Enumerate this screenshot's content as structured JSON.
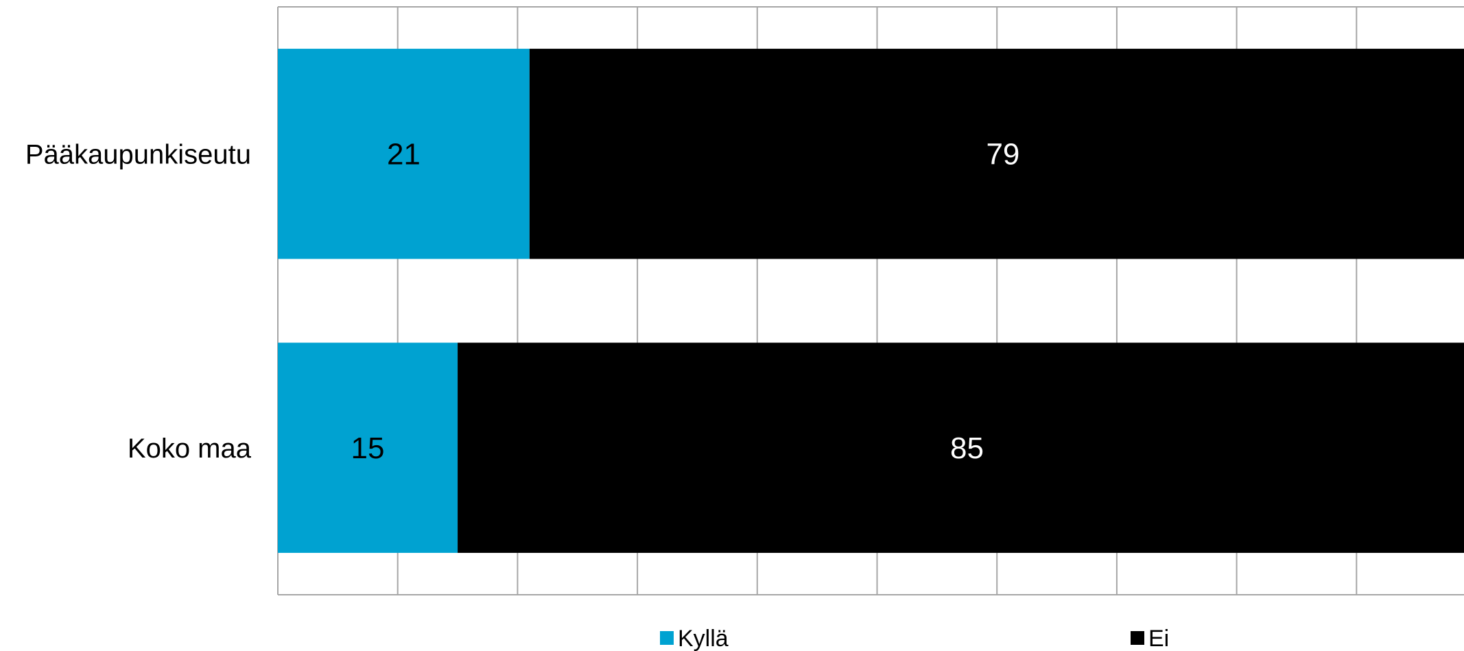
{
  "chart_data": {
    "type": "bar",
    "orientation": "horizontal",
    "stacked": "percent",
    "title": "",
    "xlabel": "",
    "ylabel": "",
    "categories": [
      "Pääkaupunkiseutu",
      "Koko maa"
    ],
    "series": [
      {
        "name": "Kyllä",
        "values": [
          21,
          15
        ],
        "color": "#00A2D1",
        "label_color": "#000000"
      },
      {
        "name": "Ei",
        "values": [
          79,
          85
        ],
        "color": "#000000",
        "label_color": "#FFFFFF"
      }
    ],
    "xlim": [
      0,
      100
    ],
    "grid": true,
    "tick_labels_shown": false,
    "legend_position": "bottom"
  }
}
